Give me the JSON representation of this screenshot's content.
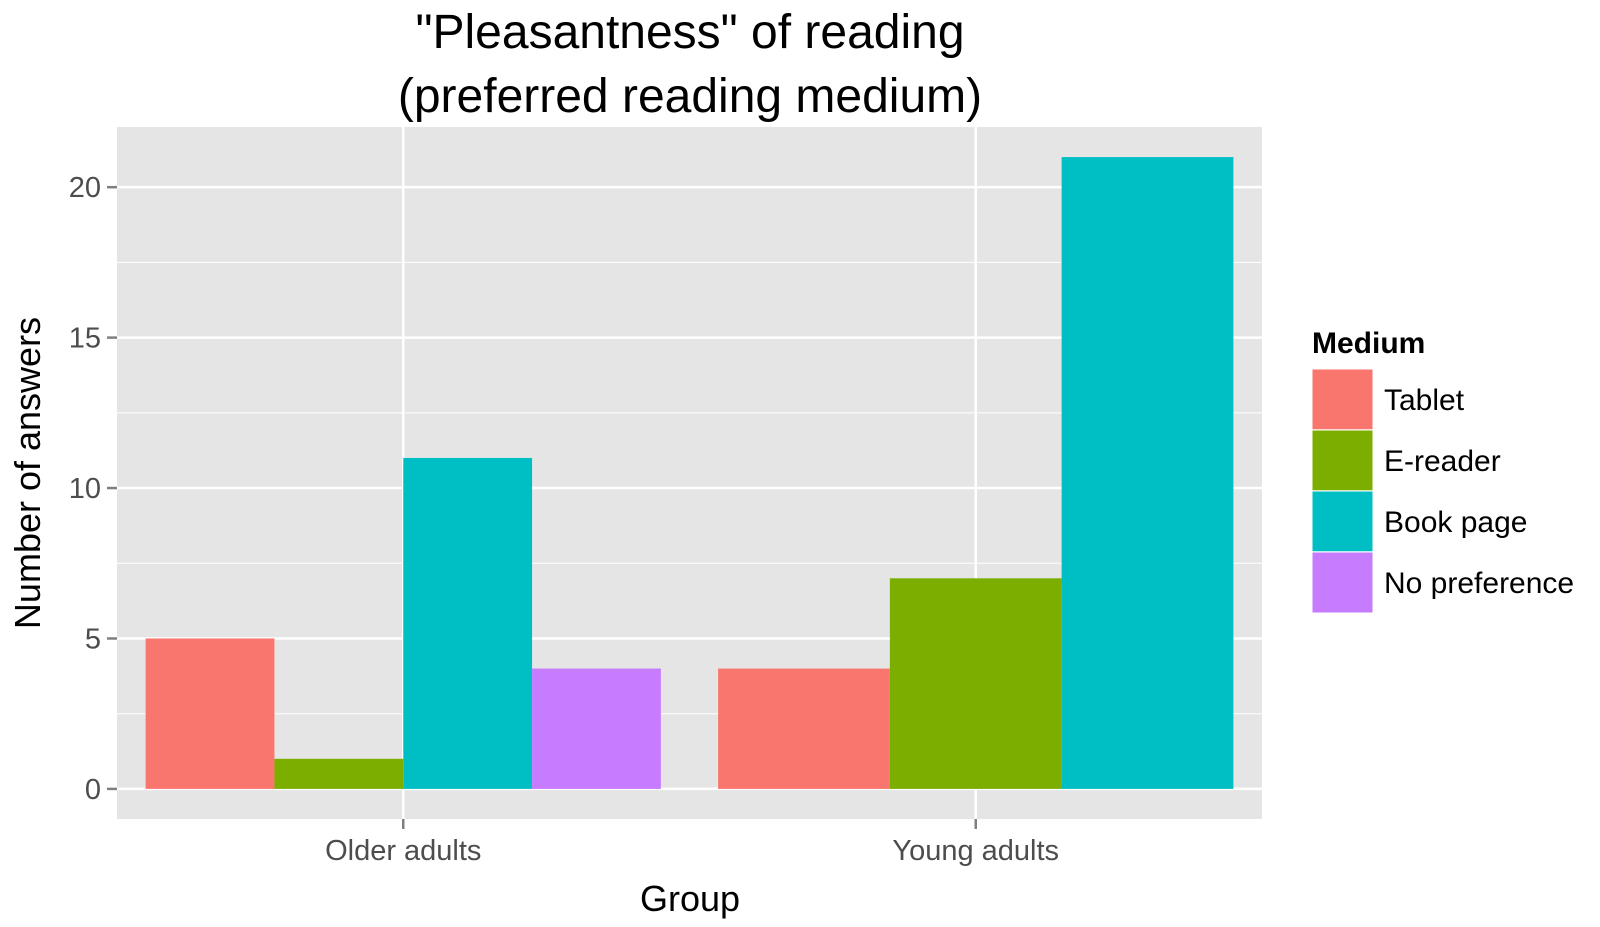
{
  "chart_data": {
    "type": "bar",
    "title_line1": "\"Pleasantness\" of reading",
    "title_line2": "(preferred reading medium)",
    "xlabel": "Group",
    "ylabel": "Number of answers",
    "categories": [
      "Older adults",
      "Young adults"
    ],
    "ylim": [
      -1,
      22
    ],
    "yticks": [
      0,
      5,
      10,
      15,
      20
    ],
    "grid": true,
    "legend": {
      "title": "Medium",
      "placement": "right"
    },
    "series": [
      {
        "name": "Tablet",
        "color": "#F8766D",
        "values": [
          5,
          4
        ]
      },
      {
        "name": "E-reader",
        "color": "#7CAE00",
        "values": [
          1,
          7
        ]
      },
      {
        "name": "Book page",
        "color": "#00BFC4",
        "values": [
          11,
          21
        ]
      },
      {
        "name": "No preference",
        "color": "#C77CFF",
        "values": [
          4,
          null
        ]
      }
    ],
    "panel_color": "#E5E5E5",
    "grid_color": "#FFFFFF"
  }
}
